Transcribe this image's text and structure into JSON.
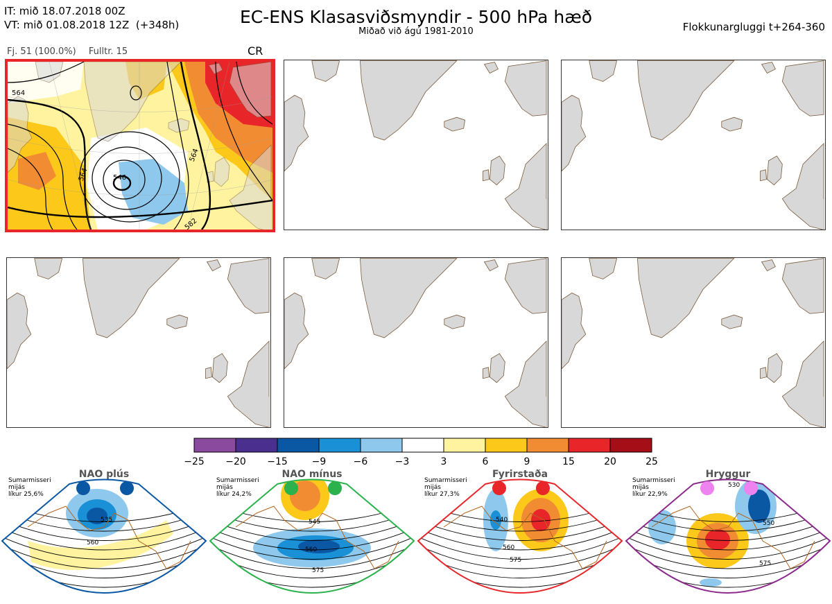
{
  "header": {
    "it_line": "IT: mið 18.07.2018 00Z",
    "vt_line": "VT: mið 01.08.2018 12Z  (+348h)",
    "title": "EC-ENS Klasasviðsmyndir - 500 hPa hæð",
    "subtitle": "Miðað við ágú 1981-2010",
    "window": "Flokkunargluggi t+264-360"
  },
  "panel_info": {
    "members": "Fj. 51 (100.0%)",
    "representative": "Fulltr. 15",
    "regime": "CR"
  },
  "panels": [
    {
      "name": "cluster-1",
      "highlighted": true,
      "contour_labels": [
        "564",
        "564",
        "546",
        "564",
        "582"
      ]
    },
    {
      "name": "cluster-2",
      "highlighted": false
    },
    {
      "name": "cluster-3",
      "highlighted": false
    },
    {
      "name": "cluster-4",
      "highlighted": false
    },
    {
      "name": "cluster-5",
      "highlighted": false
    },
    {
      "name": "cluster-6",
      "highlighted": false
    }
  ],
  "colors": {
    "land": "#d8d8d8",
    "coast": "#7a5a3a",
    "highlight_border": "#e8262a"
  },
  "chart_data": {
    "type": "heatmap",
    "colorbar": {
      "ticks": [
        -25,
        -20,
        -15,
        -9,
        -6,
        -3,
        3,
        6,
        9,
        15,
        20,
        25
      ],
      "tick_labels": [
        "−25",
        "−20",
        "−15",
        "−9",
        "−6",
        "−3",
        "3",
        "6",
        "9",
        "15",
        "20",
        "25"
      ],
      "colors": [
        "#8a4a9e",
        "#4b2f8f",
        "#0a57a4",
        "#1a91d6",
        "#8ec8ec",
        "#ffffff",
        "#fff3a0",
        "#fcc91a",
        "#f28c33",
        "#e8262a",
        "#a50d17"
      ]
    }
  },
  "regimes": [
    {
      "title": "NAO plús",
      "note": [
        "Sumarmisseri",
        "mijás",
        "líkur 25,6%"
      ],
      "color": "#0a57a4",
      "dot": "#0a57a4",
      "labels": [
        "535",
        "560"
      ]
    },
    {
      "title": "NAO mínus",
      "note": [
        "Sumarmisseri",
        "mijás",
        "líkur 24,2%"
      ],
      "color": "#2bb24c",
      "dot": "#2bb24c",
      "labels": [
        "545",
        "560",
        "575"
      ]
    },
    {
      "title": "Fyrirstaða",
      "note": [
        "Sumarmisseri",
        "mijás",
        "líkur 27,3%"
      ],
      "color": "#e8262a",
      "dot": "#e8262a",
      "labels": [
        "540",
        "560",
        "575"
      ]
    },
    {
      "title": "Hryggur",
      "note": [
        "Sumarmisseri",
        "mijás",
        "líkur 22,9%"
      ],
      "color": "#8b2a8b",
      "dot": "#ee82ee",
      "labels": [
        "530",
        "550",
        "575"
      ]
    }
  ]
}
